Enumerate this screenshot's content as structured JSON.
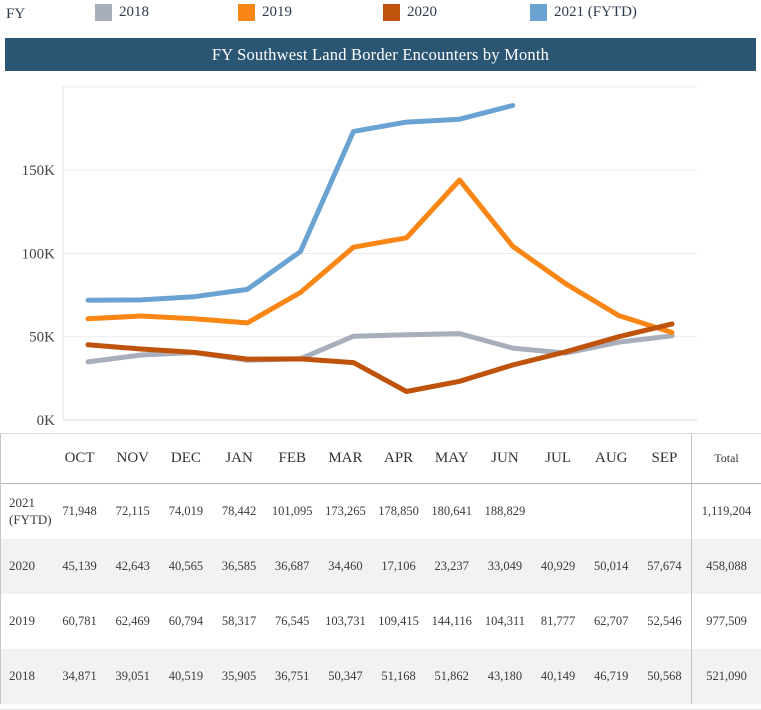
{
  "legend": {
    "title": "FY",
    "items": [
      {
        "label": "2018",
        "color": "#a9aebc"
      },
      {
        "label": "2019",
        "color": "#fa8616"
      },
      {
        "label": "2020",
        "color": "#bf530c"
      },
      {
        "label": "2021 (FYTD)",
        "color": "#6aa3d2"
      }
    ]
  },
  "title_bar": {
    "bg": "#2a5674"
  },
  "chart_data": {
    "type": "line",
    "title": "FY Southwest Land Border Encounters by Month",
    "x": [
      "OCT",
      "NOV",
      "DEC",
      "JAN",
      "FEB",
      "MAR",
      "APR",
      "MAY",
      "JUN",
      "JUL",
      "AUG",
      "SEP"
    ],
    "series": [
      {
        "name": "2018",
        "color": "#a9aebc",
        "values": [
          34871,
          39051,
          40519,
          35905,
          36751,
          50347,
          51168,
          51862,
          43180,
          40149,
          46719,
          50568
        ]
      },
      {
        "name": "2019",
        "color": "#fa8616",
        "values": [
          60781,
          62469,
          60794,
          58317,
          76545,
          103731,
          109415,
          144116,
          104311,
          81777,
          62707,
          52546
        ]
      },
      {
        "name": "2020",
        "color": "#bf530c",
        "values": [
          45139,
          42643,
          40565,
          36585,
          36687,
          34460,
          17106,
          23237,
          33049,
          40929,
          50014,
          57674
        ]
      },
      {
        "name": "2021 (FYTD)",
        "color": "#6aa3d2",
        "values": [
          71948,
          72115,
          74019,
          78442,
          101095,
          173265,
          178850,
          180641,
          188829,
          null,
          null,
          null
        ]
      }
    ],
    "ylim": [
      0,
      200000
    ],
    "yticks": [
      {
        "v": 0,
        "label": "0K"
      },
      {
        "v": 50000,
        "label": "50K"
      },
      {
        "v": 100000,
        "label": "100K"
      },
      {
        "v": 150000,
        "label": "150K"
      },
      {
        "v": 200000,
        "label": ""
      }
    ],
    "grid": true,
    "legend_position": "top"
  },
  "table": {
    "columns": [
      "OCT",
      "NOV",
      "DEC",
      "JAN",
      "FEB",
      "MAR",
      "APR",
      "MAY",
      "JUN",
      "JUL",
      "AUG",
      "SEP"
    ],
    "total_label": "Total",
    "rows": [
      {
        "label": "2021 (FYTD)",
        "cells": [
          "71,948",
          "72,115",
          "74,019",
          "78,442",
          "101,095",
          "173,265",
          "178,850",
          "180,641",
          "188,829",
          "",
          "",
          ""
        ],
        "total": "1,119,204"
      },
      {
        "label": "2020",
        "cells": [
          "45,139",
          "42,643",
          "40,565",
          "36,585",
          "36,687",
          "34,460",
          "17,106",
          "23,237",
          "33,049",
          "40,929",
          "50,014",
          "57,674"
        ],
        "total": "458,088"
      },
      {
        "label": "2019",
        "cells": [
          "60,781",
          "62,469",
          "60,794",
          "58,317",
          "76,545",
          "103,731",
          "109,415",
          "144,116",
          "104,311",
          "81,777",
          "62,707",
          "52,546"
        ],
        "total": "977,509"
      },
      {
        "label": "2018",
        "cells": [
          "34,871",
          "39,051",
          "40,519",
          "35,905",
          "36,751",
          "50,347",
          "51,168",
          "51,862",
          "43,180",
          "40,149",
          "46,719",
          "50,568"
        ],
        "total": "521,090"
      }
    ]
  }
}
